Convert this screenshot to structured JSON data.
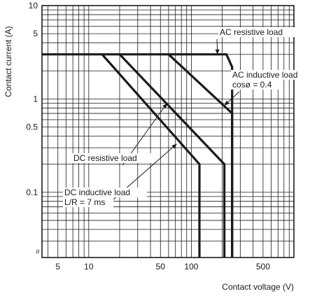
{
  "chart_data": {
    "type": "line",
    "title": "",
    "xlabel": "Contact voltage (V)",
    "ylabel": "Contact current (A)",
    "x_scale": "log",
    "y_scale": "log",
    "xlim": [
      3.5,
      1000
    ],
    "ylim": [
      0.02,
      10
    ],
    "x_ticks": [
      5,
      10,
      50,
      100,
      500
    ],
    "x_tick_labels": [
      "5",
      "10",
      "50",
      "100",
      "500"
    ],
    "y_ticks": [
      0.1,
      0.5,
      1,
      5,
      10
    ],
    "y_tick_labels": [
      "0.1",
      "0.5",
      "1",
      "5",
      "10"
    ],
    "grid": true,
    "legend": "none",
    "series": [
      {
        "name": "AC resistive load",
        "x": [
          3.5,
          220,
          250,
          250
        ],
        "y": [
          3,
          3,
          2.2,
          0.02
        ]
      },
      {
        "name": "AC inductive load cosø = 0.4",
        "x": [
          60,
          250,
          250
        ],
        "y": [
          3,
          0.7,
          0.02
        ]
      },
      {
        "name": "DC resistive load",
        "x": [
          20,
          210,
          210
        ],
        "y": [
          3,
          0.2,
          0.02
        ]
      },
      {
        "name": "DC inductive load L/R = 7 ms",
        "x": [
          13.5,
          120,
          120
        ],
        "y": [
          3,
          0.2,
          0.02
        ]
      }
    ],
    "annotations": [
      {
        "series": 0,
        "lines": [
          "AC resistive load"
        ],
        "anchor": [
          180,
          3
        ]
      },
      {
        "series": 1,
        "lines": [
          "AC inductive load",
          "cosø = 0.4"
        ],
        "anchor": [
          210,
          0.85
        ]
      },
      {
        "series": 2,
        "lines": [
          "DC resistive load"
        ],
        "anchor": [
          58,
          0.9
        ]
      },
      {
        "series": 3,
        "lines": [
          "DC inductive load",
          "L/R = 7 ms"
        ],
        "anchor": [
          72,
          0.33
        ]
      }
    ],
    "axis_break_mark": "≈"
  }
}
